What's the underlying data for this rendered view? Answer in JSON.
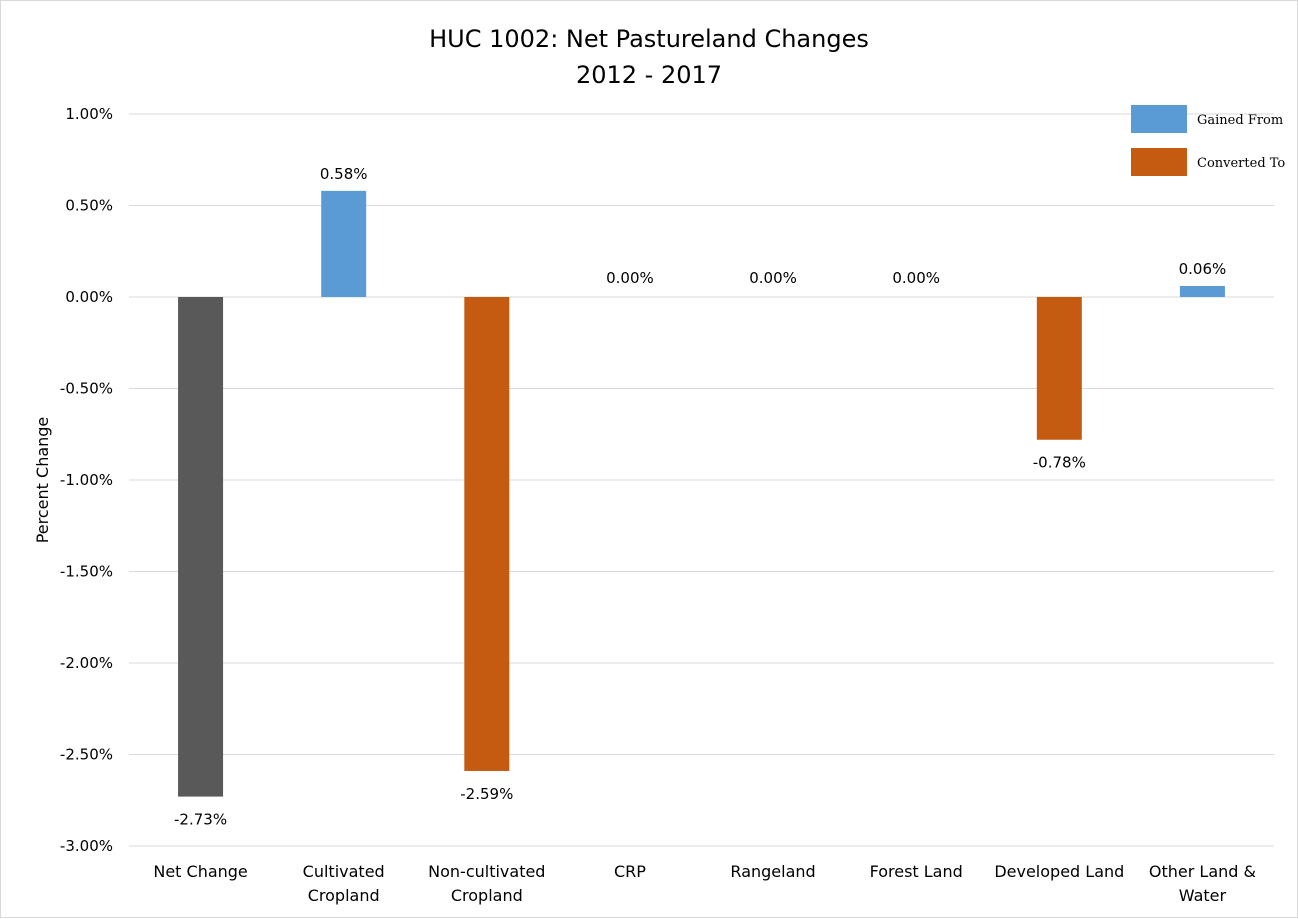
{
  "chart_data": {
    "type": "bar",
    "title_lines": [
      "HUC 1002: Net Pastureland Changes",
      "2012 - 2017"
    ],
    "xlabel": "",
    "ylabel": "Percent Change",
    "ylim": [
      -3.0,
      1.0
    ],
    "ytick_step": 0.5,
    "ytick_labels": [
      "1.00%",
      "0.50%",
      "0.00%",
      "-0.50%",
      "-1.00%",
      "-1.50%",
      "-2.00%",
      "-2.50%",
      "-3.00%"
    ],
    "grid": true,
    "legend_position": "top-right",
    "categories": [
      [
        "Net Change"
      ],
      [
        "Cultivated",
        "Cropland"
      ],
      [
        "Non-cultivated",
        "Cropland"
      ],
      [
        "CRP"
      ],
      [
        "Rangeland"
      ],
      [
        "Forest Land"
      ],
      [
        "Developed Land"
      ],
      [
        "Other Land &",
        "Water"
      ]
    ],
    "values": [
      -2.73,
      0.58,
      -2.59,
      0.0,
      0.0,
      0.0,
      -0.78,
      0.06
    ],
    "data_labels": [
      "-2.73%",
      "0.58%",
      "-2.59%",
      "0.00%",
      "0.00%",
      "0.00%",
      "-0.78%",
      "0.06%"
    ],
    "bar_series": [
      "net",
      "gained",
      "converted",
      "gained",
      "gained",
      "gained",
      "converted",
      "gained"
    ],
    "legend": [
      {
        "key": "gained",
        "label": "Gained From",
        "color": "#5b9bd5"
      },
      {
        "key": "converted",
        "label": "Converted To",
        "color": "#c55a11"
      }
    ],
    "colors": {
      "net": "#595959",
      "gained": "#5b9bd5",
      "converted": "#c55a11",
      "grid": "#d9d9d9"
    }
  }
}
